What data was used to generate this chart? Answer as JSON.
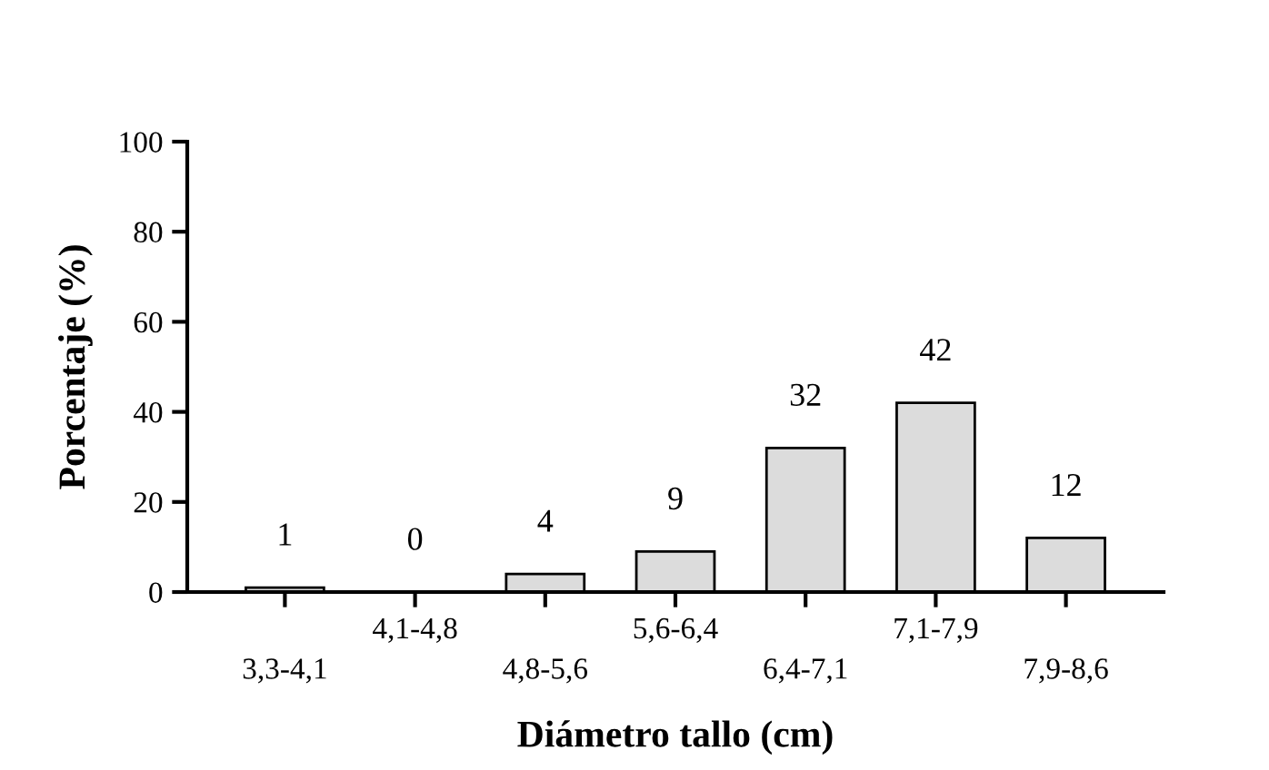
{
  "chart_data": {
    "type": "bar",
    "xlabel": "Diámetro tallo (cm)",
    "ylabel": "Porcentaje (%)",
    "categories": [
      "3,3-4,1",
      "4,1-4,8",
      "4,8-5,6",
      "5,6-6,4",
      "6,4-7,1",
      "7,1-7,9",
      "7,9-8,6"
    ],
    "values": [
      1,
      0,
      4,
      9,
      32,
      42,
      12
    ],
    "color": "#dcdcdc",
    "ylim": [
      0,
      100
    ],
    "yticks": [
      0,
      20,
      40,
      60,
      80,
      100
    ],
    "data_labels": true,
    "grid": false
  }
}
